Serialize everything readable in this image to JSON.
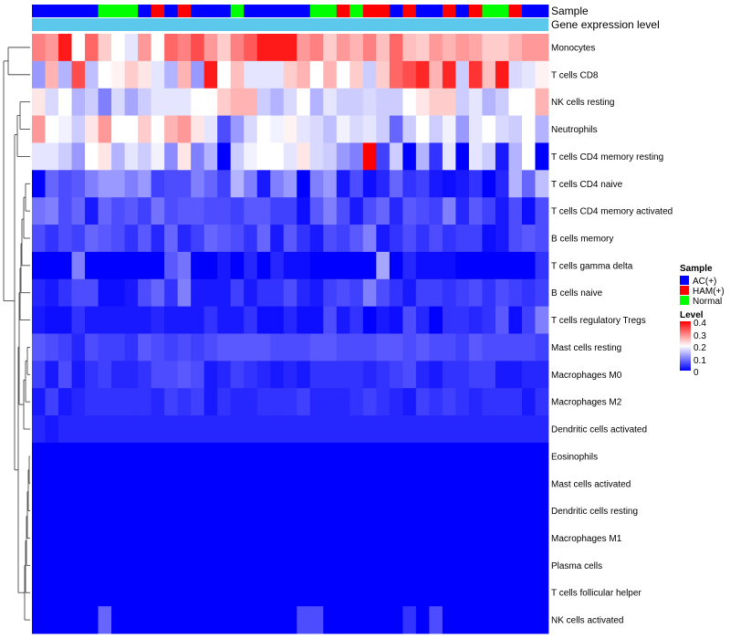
{
  "chart_data": {
    "type": "heatmap",
    "annotation_tracks": [
      "Sample",
      "Gene expression level"
    ],
    "rows": [
      "Monocytes",
      "T cells CD8",
      "NK cells resting",
      "Neutrophils",
      "T cells CD4 memory resting",
      "T cells CD4 naive",
      "T cells CD4 memory activated",
      "B cells memory",
      "T cells gamma delta",
      "B cells naive",
      "T cells regulatory  Tregs",
      "Mast cells resting",
      "Macrophages M0",
      "Macrophages M2",
      "Dendritic cells activated",
      "Eosinophils",
      "Mast cells activated",
      "Dendritic cells resting",
      "Macrophages M1",
      "Plasma cells",
      "T cells follicular helper",
      "NK cells activated"
    ],
    "sample_groups": [
      "AC",
      "AC",
      "AC",
      "AC",
      "AC",
      "Normal",
      "Normal",
      "Normal",
      "AC",
      "HAM",
      "AC",
      "HAM",
      "AC",
      "AC",
      "AC",
      "Normal",
      "AC",
      "AC",
      "AC",
      "AC",
      "AC",
      "Normal",
      "Normal",
      "HAM",
      "Normal",
      "HAM",
      "HAM",
      "AC",
      "HAM",
      "AC",
      "AC",
      "HAM",
      "AC",
      "HAM",
      "Normal",
      "Normal",
      "HAM",
      "AC",
      "AC"
    ],
    "values": [
      [
        0.3,
        0.28,
        0.38,
        0.2,
        0.32,
        0.24,
        0.2,
        0.18,
        0.28,
        0.2,
        0.32,
        0.3,
        0.34,
        0.28,
        0.24,
        0.3,
        0.33,
        0.38,
        0.38,
        0.38,
        0.28,
        0.3,
        0.24,
        0.28,
        0.26,
        0.3,
        0.25,
        0.32,
        0.25,
        0.24,
        0.28,
        0.26,
        0.28,
        0.27,
        0.24,
        0.24,
        0.26,
        0.28,
        0.28
      ],
      [
        0.12,
        0.26,
        0.14,
        0.34,
        0.15,
        0.2,
        0.21,
        0.24,
        0.22,
        0.18,
        0.14,
        0.26,
        0.12,
        0.38,
        0.2,
        0.25,
        0.18,
        0.18,
        0.18,
        0.24,
        0.26,
        0.2,
        0.26,
        0.2,
        0.24,
        0.16,
        0.24,
        0.32,
        0.34,
        0.37,
        0.26,
        0.37,
        0.16,
        0.36,
        0.25,
        0.38,
        0.17,
        0.18,
        0.21
      ],
      [
        0.22,
        0.17,
        0.2,
        0.14,
        0.16,
        0.1,
        0.17,
        0.13,
        0.16,
        0.18,
        0.18,
        0.18,
        0.2,
        0.2,
        0.24,
        0.26,
        0.26,
        0.16,
        0.14,
        0.17,
        0.2,
        0.14,
        0.18,
        0.16,
        0.16,
        0.17,
        0.16,
        0.16,
        0.2,
        0.22,
        0.24,
        0.24,
        0.16,
        0.18,
        0.14,
        0.16,
        0.2,
        0.2,
        0.26
      ],
      [
        0.28,
        0.2,
        0.19,
        0.16,
        0.22,
        0.28,
        0.2,
        0.2,
        0.24,
        0.2,
        0.26,
        0.28,
        0.22,
        0.18,
        0.06,
        0.12,
        0.17,
        0.2,
        0.19,
        0.21,
        0.18,
        0.17,
        0.15,
        0.19,
        0.17,
        0.18,
        0.16,
        0.08,
        0.16,
        0.2,
        0.16,
        0.19,
        0.12,
        0.18,
        0.2,
        0.17,
        0.16,
        0.2,
        0.14
      ],
      [
        0.18,
        0.18,
        0.16,
        0.12,
        0.2,
        0.22,
        0.14,
        0.18,
        0.16,
        0.19,
        0.11,
        0.22,
        0.1,
        0.14,
        0.0,
        0.16,
        0.19,
        0.2,
        0.2,
        0.18,
        0.22,
        0.17,
        0.16,
        0.12,
        0.1,
        0.4,
        0.05,
        0.16,
        0.0,
        0.14,
        0.04,
        0.18,
        0.0,
        0.18,
        0.16,
        0.02,
        0.14,
        0.2,
        0.0
      ],
      [
        0.0,
        0.08,
        0.06,
        0.07,
        0.1,
        0.12,
        0.12,
        0.1,
        0.12,
        0.05,
        0.06,
        0.06,
        0.1,
        0.08,
        0.05,
        0.14,
        0.1,
        0.02,
        0.1,
        0.12,
        0.0,
        0.1,
        0.12,
        0.02,
        0.06,
        0.01,
        0.03,
        0.08,
        0.04,
        0.05,
        0.02,
        0.01,
        0.02,
        0.04,
        0.0,
        0.03,
        0.14,
        0.08,
        0.15
      ],
      [
        0.09,
        0.1,
        0.06,
        0.08,
        0.02,
        0.08,
        0.06,
        0.07,
        0.05,
        0.09,
        0.06,
        0.07,
        0.07,
        0.06,
        0.06,
        0.05,
        0.07,
        0.07,
        0.05,
        0.05,
        0.01,
        0.07,
        0.1,
        0.06,
        0.02,
        0.06,
        0.08,
        0.03,
        0.07,
        0.06,
        0.05,
        0.1,
        0.03,
        0.07,
        0.05,
        0.02,
        0.06,
        0.01,
        0.06
      ],
      [
        0.06,
        0.04,
        0.06,
        0.05,
        0.08,
        0.07,
        0.06,
        0.04,
        0.07,
        0.03,
        0.08,
        0.03,
        0.05,
        0.08,
        0.07,
        0.06,
        0.04,
        0.08,
        0.02,
        0.07,
        0.04,
        0.02,
        0.06,
        0.05,
        0.07,
        0.1,
        0.02,
        0.04,
        0.06,
        0.04,
        0.06,
        0.04,
        0.05,
        0.05,
        0.01,
        0.02,
        0.06,
        0.07,
        0.06
      ],
      [
        0.0,
        0.0,
        0.0,
        0.1,
        0.0,
        0.0,
        0.0,
        0.0,
        0.0,
        0.0,
        0.07,
        0.09,
        0.0,
        0.0,
        0.02,
        0.0,
        0.03,
        0.0,
        0.03,
        0.01,
        0.01,
        0.0,
        0.0,
        0.0,
        0.0,
        0.0,
        0.13,
        0.0,
        0.03,
        0.01,
        0.01,
        0.01,
        0.0,
        0.0,
        0.0,
        0.0,
        0.0,
        0.0,
        0.04
      ],
      [
        0.03,
        0.02,
        0.04,
        0.06,
        0.06,
        0.01,
        0.01,
        0.02,
        0.06,
        0.08,
        0.04,
        0.1,
        0.02,
        0.02,
        0.02,
        0.05,
        0.02,
        0.04,
        0.04,
        0.06,
        0.03,
        0.02,
        0.05,
        0.06,
        0.05,
        0.1,
        0.06,
        0.04,
        0.02,
        0.05,
        0.05,
        0.04,
        0.05,
        0.06,
        0.04,
        0.06,
        0.05,
        0.04,
        0.05
      ],
      [
        0.02,
        0.01,
        0.01,
        0.04,
        0.02,
        0.02,
        0.02,
        0.02,
        0.02,
        0.03,
        0.02,
        0.02,
        0.02,
        0.04,
        0.02,
        0.02,
        0.04,
        0.01,
        0.01,
        0.03,
        0.01,
        0.01,
        0.06,
        0.02,
        0.04,
        0.0,
        0.02,
        0.01,
        0.06,
        0.03,
        0.0,
        0.04,
        0.04,
        0.03,
        0.04,
        0.07,
        0.01,
        0.05,
        0.1
      ],
      [
        0.07,
        0.06,
        0.05,
        0.03,
        0.06,
        0.05,
        0.05,
        0.04,
        0.07,
        0.06,
        0.05,
        0.06,
        0.05,
        0.06,
        0.07,
        0.07,
        0.07,
        0.07,
        0.06,
        0.06,
        0.06,
        0.07,
        0.07,
        0.06,
        0.06,
        0.06,
        0.07,
        0.07,
        0.06,
        0.07,
        0.06,
        0.06,
        0.05,
        0.07,
        0.06,
        0.06,
        0.06,
        0.06,
        0.05
      ],
      [
        0.05,
        0.02,
        0.06,
        0.02,
        0.04,
        0.05,
        0.03,
        0.03,
        0.04,
        0.06,
        0.06,
        0.07,
        0.06,
        0.02,
        0.03,
        0.05,
        0.04,
        0.03,
        0.02,
        0.03,
        0.02,
        0.04,
        0.04,
        0.04,
        0.04,
        0.03,
        0.04,
        0.05,
        0.06,
        0.03,
        0.02,
        0.04,
        0.04,
        0.05,
        0.05,
        0.02,
        0.02,
        0.03,
        0.03
      ],
      [
        0.02,
        0.05,
        0.02,
        0.03,
        0.04,
        0.04,
        0.04,
        0.04,
        0.04,
        0.03,
        0.05,
        0.04,
        0.05,
        0.02,
        0.04,
        0.03,
        0.03,
        0.04,
        0.04,
        0.04,
        0.05,
        0.03,
        0.03,
        0.03,
        0.04,
        0.05,
        0.04,
        0.03,
        0.02,
        0.05,
        0.04,
        0.05,
        0.04,
        0.03,
        0.04,
        0.04,
        0.04,
        0.02,
        0.04
      ],
      [
        0.03,
        0.02,
        0.03,
        0.03,
        0.03,
        0.03,
        0.03,
        0.03,
        0.03,
        0.03,
        0.03,
        0.03,
        0.03,
        0.03,
        0.03,
        0.03,
        0.03,
        0.03,
        0.03,
        0.03,
        0.03,
        0.03,
        0.03,
        0.03,
        0.03,
        0.03,
        0.03,
        0.03,
        0.03,
        0.03,
        0.03,
        0.03,
        0.03,
        0.03,
        0.03,
        0.03,
        0.03,
        0.03,
        0.03
      ],
      [
        0.0,
        0.0,
        0.0,
        0.0,
        0.0,
        0.0,
        0.0,
        0.0,
        0.0,
        0.0,
        0.0,
        0.0,
        0.0,
        0.0,
        0.0,
        0.0,
        0.0,
        0.0,
        0.0,
        0.0,
        0.0,
        0.0,
        0.0,
        0.0,
        0.0,
        0.0,
        0.0,
        0.0,
        0.0,
        0.0,
        0.0,
        0.0,
        0.0,
        0.0,
        0.0,
        0.0,
        0.0,
        0.0,
        0.0
      ],
      [
        0.0,
        0.0,
        0.0,
        0.0,
        0.0,
        0.0,
        0.0,
        0.0,
        0.0,
        0.0,
        0.0,
        0.0,
        0.0,
        0.0,
        0.0,
        0.0,
        0.0,
        0.0,
        0.0,
        0.0,
        0.0,
        0.0,
        0.0,
        0.0,
        0.0,
        0.0,
        0.0,
        0.0,
        0.0,
        0.0,
        0.0,
        0.0,
        0.0,
        0.0,
        0.0,
        0.0,
        0.0,
        0.0,
        0.0
      ],
      [
        0.0,
        0.0,
        0.0,
        0.0,
        0.0,
        0.0,
        0.0,
        0.0,
        0.0,
        0.0,
        0.0,
        0.0,
        0.0,
        0.0,
        0.0,
        0.0,
        0.0,
        0.0,
        0.0,
        0.0,
        0.0,
        0.0,
        0.0,
        0.0,
        0.0,
        0.0,
        0.0,
        0.0,
        0.0,
        0.0,
        0.0,
        0.0,
        0.0,
        0.0,
        0.0,
        0.0,
        0.0,
        0.0,
        0.0
      ],
      [
        0.0,
        0.0,
        0.0,
        0.0,
        0.0,
        0.0,
        0.0,
        0.0,
        0.0,
        0.0,
        0.0,
        0.0,
        0.0,
        0.0,
        0.0,
        0.0,
        0.0,
        0.0,
        0.0,
        0.0,
        0.0,
        0.0,
        0.0,
        0.0,
        0.0,
        0.0,
        0.0,
        0.0,
        0.0,
        0.0,
        0.0,
        0.0,
        0.0,
        0.0,
        0.0,
        0.0,
        0.0,
        0.0,
        0.0
      ],
      [
        0.0,
        0.0,
        0.0,
        0.0,
        0.0,
        0.0,
        0.0,
        0.0,
        0.0,
        0.0,
        0.0,
        0.0,
        0.0,
        0.0,
        0.0,
        0.0,
        0.0,
        0.0,
        0.0,
        0.0,
        0.0,
        0.0,
        0.0,
        0.0,
        0.0,
        0.0,
        0.0,
        0.0,
        0.0,
        0.0,
        0.0,
        0.0,
        0.0,
        0.0,
        0.0,
        0.0,
        0.0,
        0.0,
        0.0
      ],
      [
        0.0,
        0.0,
        0.0,
        0.0,
        0.0,
        0.0,
        0.0,
        0.0,
        0.0,
        0.0,
        0.0,
        0.0,
        0.0,
        0.0,
        0.0,
        0.0,
        0.0,
        0.0,
        0.0,
        0.0,
        0.0,
        0.0,
        0.0,
        0.0,
        0.0,
        0.0,
        0.0,
        0.0,
        0.0,
        0.0,
        0.0,
        0.0,
        0.0,
        0.0,
        0.0,
        0.0,
        0.0,
        0.0,
        0.0
      ],
      [
        0.0,
        0.0,
        0.0,
        0.0,
        0.0,
        0.08,
        0.0,
        0.0,
        0.0,
        0.0,
        0.0,
        0.0,
        0.0,
        0.0,
        0.0,
        0.0,
        0.0,
        0.0,
        0.0,
        0.0,
        0.06,
        0.06,
        0.0,
        0.0,
        0.0,
        0.0,
        0.0,
        0.0,
        0.04,
        0.0,
        0.06,
        0.0,
        0.0,
        0.0,
        0.0,
        0.0,
        0.0,
        0.0,
        0.0
      ]
    ],
    "color_scale": {
      "min": 0,
      "max": 0.4,
      "low": "#0000ff",
      "mid": "#ffffff",
      "midpoint": 0.2,
      "high": "#ff0000"
    },
    "legend": {
      "sample_title": "Sample",
      "sample_entries": [
        {
          "label": "AC(+)",
          "color": "#0000ff"
        },
        {
          "label": "HAM(+)",
          "color": "#ff0000"
        },
        {
          "label": "Normal",
          "color": "#00ff00"
        }
      ],
      "level_title": "Level",
      "level_ticks": [
        "0.4",
        "0.3",
        "0.2",
        "0.1",
        "0"
      ],
      "placement": "right"
    },
    "group_colors": {
      "AC": "#0000ff",
      "HAM": "#ff0000",
      "Normal": "#00ff00"
    },
    "expression_track_color": "#5bc8ec"
  }
}
